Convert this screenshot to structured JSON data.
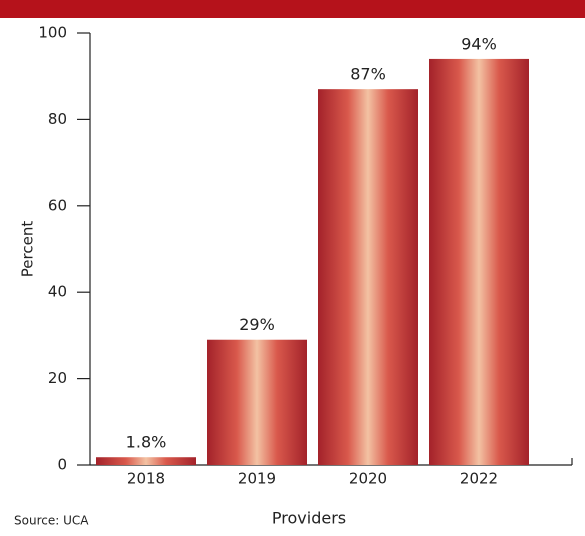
{
  "chart_data": {
    "type": "bar",
    "source": "Source: UCA",
    "x_label": "Providers",
    "y_label": "Percent",
    "categories": [
      "2018",
      "2019",
      "2020",
      "2022"
    ],
    "values": [
      1.8,
      29,
      87,
      94
    ],
    "value_labels": [
      "1.8%",
      "29%",
      "87%",
      "94%"
    ],
    "color": "#a3222a",
    "ylim": [
      0,
      100
    ],
    "yticks": [
      0,
      20,
      40,
      60,
      80,
      100
    ]
  }
}
